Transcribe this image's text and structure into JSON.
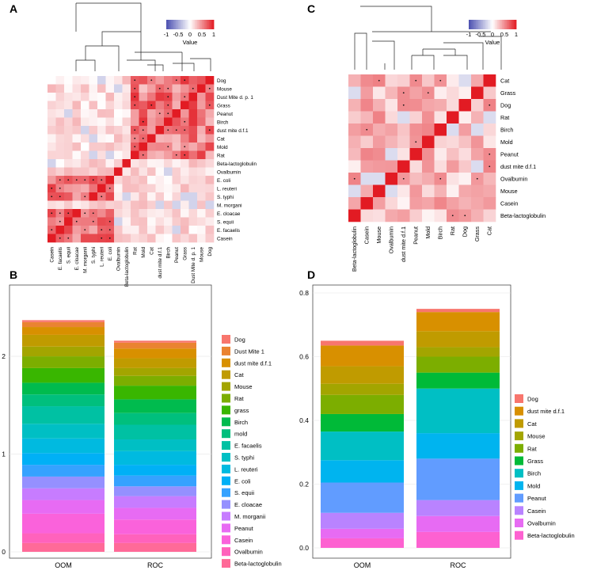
{
  "panel_labels": [
    "A",
    "B",
    "C",
    "D"
  ],
  "colors": {
    "neg": "#4a4fb0",
    "mid": "#ffffff",
    "pos": "#e21b23",
    "plot_border": "#333333",
    "stack": {
      "Dog": "#f8766d",
      "Dust Mite 1": "#ea8331",
      "dust mite d.f.1": "#d89000",
      "Cat": "#c09b00",
      "Mouse": "#a3a500",
      "Rat": "#7cae00",
      "grass": "#39b600",
      "Birch": "#00bb4e",
      "mold": "#00bf7d",
      "E. facaelis": "#00c1a3",
      "S. typhi": "#00bfc4",
      "L. reuteri": "#00bae0",
      "E. coli": "#00b0f6",
      "S. equii": "#35a2ff",
      "E. cloacae": "#9590ff",
      "M. morganii": "#c77cff",
      "Peanut": "#e76bf3",
      "Casein": "#fa62db",
      "Ovalbumin": "#ff62bc",
      "Beta-lactoglobulin": "#ff6a98",
      "Grass": "#00ba38",
      "Birch_d": "#00bfc4",
      "Mold": "#00b4ef",
      "Peanut_d": "#619cff",
      "Casein_d": "#b983ff",
      "Ovalbumin_d": "#e76bf3",
      "Beta_d": "#fd61d1"
    }
  },
  "chart_data": [
    {
      "panel": "A",
      "type": "heatmap",
      "title": "",
      "legend_title": "Value",
      "legend_ticks": [
        "-1",
        "-0.5",
        "0",
        "0.5",
        "1"
      ],
      "row_labels": [
        "Dog",
        "Mouse",
        "Dust Mite d. p. 1",
        "Grass",
        "Peanut",
        "Birch",
        "dust mite d.f.1",
        "Cat",
        "Mold",
        "Rat",
        "Beta-lactoglobulin",
        "Ovalbumin",
        "E. coli",
        "L. reuteri",
        "S. typhi",
        "M. morgani",
        "E. cloacae",
        "S. equii",
        "E. facaelis",
        "Casein"
      ],
      "col_labels": [
        "Casein",
        "E. facaelis",
        "S. equii",
        "E. cloacae",
        "M. morganii",
        "S. typhi",
        "L. reuteri",
        "E. coli",
        "Ovalbumin",
        "Beta-lactoglobulin",
        "Rat",
        "Mold",
        "Cat",
        "dust mite d.f.1",
        "Birch",
        "Peanut",
        "Grass",
        "Dust Mite d. p. 1",
        "Mouse",
        "Dog"
      ],
      "group_a": [
        "Casein",
        "E. facaelis",
        "S. equii",
        "E. cloacae",
        "M. morganii",
        "S. typhi",
        "L. reuteri",
        "E. coli"
      ],
      "group_b": [
        "Rat",
        "Mold",
        "Cat",
        "dust mite d.f.1",
        "Birch",
        "Peanut",
        "Grass",
        "Dust Mite d. p. 1",
        "Mouse",
        "Dog"
      ],
      "value_range": [
        -1,
        1
      ]
    },
    {
      "panel": "C",
      "type": "heatmap",
      "title": "",
      "legend_title": "Value",
      "legend_ticks": [
        "-1",
        "-0.5",
        "0",
        "0.5",
        "1"
      ],
      "row_labels": [
        "Cat",
        "Grass",
        "Dog",
        "Rat",
        "Birch",
        "Mold",
        "Peanut",
        "dust mite d.f.1",
        "Ovalbumin",
        "Mouse",
        "Casein",
        "Beta-lactoglobulin"
      ],
      "col_labels": [
        "Beta-lactoglobulin",
        "Casein",
        "Mouse",
        "Ovalbumin",
        "dust mite d.f.1",
        "Peanut",
        "Mold",
        "Birch",
        "Rat",
        "Dog",
        "Grass",
        "Cat"
      ],
      "value_range": [
        -1,
        1
      ]
    },
    {
      "panel": "B",
      "type": "bar",
      "stacked": true,
      "categories": [
        "OOM",
        "ROC"
      ],
      "ylim": [
        0,
        2.6
      ],
      "yticks": [
        0,
        1,
        2
      ],
      "legend_title": "",
      "legend_position": "right",
      "series": [
        {
          "name": "Dog",
          "values": [
            0.02,
            0.02
          ]
        },
        {
          "name": "Dust Mite 1",
          "values": [
            0.05,
            0.06
          ]
        },
        {
          "name": "dust mite d.f.1",
          "values": [
            0.08,
            0.1
          ]
        },
        {
          "name": "Cat",
          "values": [
            0.12,
            0.1
          ]
        },
        {
          "name": "Mouse",
          "values": [
            0.1,
            0.08
          ]
        },
        {
          "name": "Rat",
          "values": [
            0.12,
            0.1
          ]
        },
        {
          "name": "grass",
          "values": [
            0.15,
            0.14
          ]
        },
        {
          "name": "Birch",
          "values": [
            0.12,
            0.14
          ]
        },
        {
          "name": "mold",
          "values": [
            0.12,
            0.12
          ]
        },
        {
          "name": "E. facaelis",
          "values": [
            0.18,
            0.15
          ]
        },
        {
          "name": "S. typhi",
          "values": [
            0.15,
            0.12
          ]
        },
        {
          "name": "L. reuteri",
          "values": [
            0.15,
            0.14
          ]
        },
        {
          "name": "E. coli",
          "values": [
            0.12,
            0.11
          ]
        },
        {
          "name": "S. equii",
          "values": [
            0.12,
            0.11
          ]
        },
        {
          "name": "E. cloacae",
          "values": [
            0.12,
            0.1
          ]
        },
        {
          "name": "M. morganii",
          "values": [
            0.12,
            0.12
          ]
        },
        {
          "name": "Peanut",
          "values": [
            0.14,
            0.12
          ]
        },
        {
          "name": "Casein",
          "values": [
            0.2,
            0.15
          ]
        },
        {
          "name": "Ovalbumin",
          "values": [
            0.1,
            0.09
          ]
        },
        {
          "name": "Beta-lactoglobulin",
          "values": [
            0.09,
            0.09
          ]
        }
      ]
    },
    {
      "panel": "D",
      "type": "bar",
      "stacked": true,
      "categories": [
        "OOM",
        "ROC"
      ],
      "ylim": [
        0,
        0.8
      ],
      "yticks": [
        "0.0",
        "0.2",
        "0.4",
        "0.6",
        "0.8"
      ],
      "legend_title": "",
      "legend_position": "right",
      "series": [
        {
          "name": "Dog",
          "values": [
            0.015,
            0.01
          ]
        },
        {
          "name": "dust mite d.f.1",
          "values": [
            0.065,
            0.06
          ]
        },
        {
          "name": "Cat",
          "values": [
            0.055,
            0.05
          ]
        },
        {
          "name": "Mouse",
          "values": [
            0.035,
            0.03
          ]
        },
        {
          "name": "Rat",
          "values": [
            0.06,
            0.05
          ]
        },
        {
          "name": "Grass",
          "values": [
            0.055,
            0.05
          ]
        },
        {
          "name": "Birch",
          "values": [
            0.09,
            0.14
          ]
        },
        {
          "name": "Mold",
          "values": [
            0.07,
            0.08
          ]
        },
        {
          "name": "Peanut",
          "values": [
            0.095,
            0.13
          ]
        },
        {
          "name": "Casein",
          "values": [
            0.05,
            0.05
          ]
        },
        {
          "name": "Ovalbumin",
          "values": [
            0.03,
            0.05
          ]
        },
        {
          "name": "Beta-lactoglobulin",
          "values": [
            0.03,
            0.05
          ]
        }
      ]
    }
  ]
}
